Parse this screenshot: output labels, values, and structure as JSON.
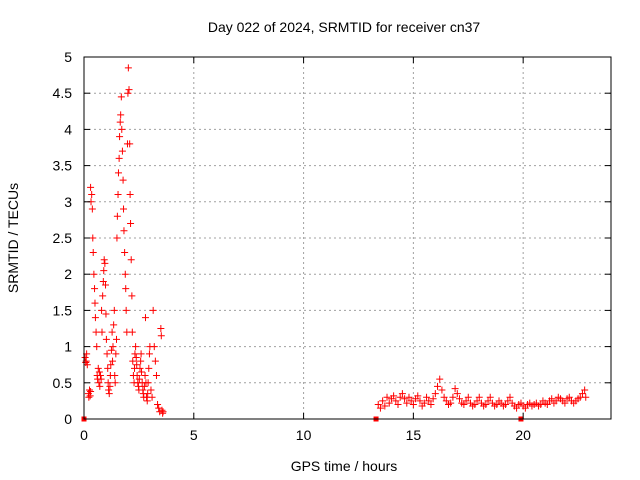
{
  "chart_data": {
    "type": "scatter",
    "title": "Day 022 of 2024, SRMTID for receiver cn37",
    "xlabel": "GPS time / hours",
    "ylabel": "SRMTID / TECUs",
    "xlim": [
      0,
      24
    ],
    "ylim": [
      0,
      5
    ],
    "xticks": [
      "0",
      "5",
      "10",
      "15",
      "20"
    ],
    "yticks": [
      "0",
      "0.5",
      "1",
      "1.5",
      "2",
      "2.5",
      "3",
      "3.5",
      "4",
      "4.5",
      "5"
    ],
    "grid": true,
    "legend": "none",
    "marker": "plus",
    "color": "#ff0000",
    "series": [
      {
        "name": "SRMTID",
        "points": [
          [
            0.05,
            0.85
          ],
          [
            0.08,
            0.78
          ],
          [
            0.1,
            0.8
          ],
          [
            0.12,
            0.9
          ],
          [
            0.15,
            0.75
          ],
          [
            0.2,
            0.35
          ],
          [
            0.22,
            0.3
          ],
          [
            0.25,
            0.4
          ],
          [
            0.28,
            0.32
          ],
          [
            0.3,
            0.38
          ],
          [
            0.3,
            3.2
          ],
          [
            0.32,
            3.0
          ],
          [
            0.35,
            3.1
          ],
          [
            0.38,
            2.9
          ],
          [
            0.4,
            2.5
          ],
          [
            0.42,
            2.3
          ],
          [
            0.45,
            2.0
          ],
          [
            0.48,
            1.8
          ],
          [
            0.5,
            1.6
          ],
          [
            0.52,
            1.4
          ],
          [
            0.55,
            1.2
          ],
          [
            0.58,
            1.0
          ],
          [
            0.6,
            0.6
          ],
          [
            0.62,
            0.55
          ],
          [
            0.65,
            0.7
          ],
          [
            0.68,
            0.5
          ],
          [
            0.7,
            0.65
          ],
          [
            0.72,
            0.45
          ],
          [
            0.75,
            0.6
          ],
          [
            0.78,
            0.55
          ],
          [
            0.8,
            1.5
          ],
          [
            0.82,
            1.2
          ],
          [
            0.85,
            1.7
          ],
          [
            0.88,
            1.9
          ],
          [
            0.9,
            2.05
          ],
          [
            0.92,
            2.2
          ],
          [
            0.95,
            2.15
          ],
          [
            0.98,
            1.85
          ],
          [
            1.0,
            1.45
          ],
          [
            1.02,
            1.1
          ],
          [
            1.05,
            0.9
          ],
          [
            1.08,
            0.7
          ],
          [
            1.1,
            0.5
          ],
          [
            1.12,
            0.4
          ],
          [
            1.15,
            0.35
          ],
          [
            1.18,
            0.45
          ],
          [
            1.2,
            0.6
          ],
          [
            1.22,
            0.75
          ],
          [
            1.25,
            0.95
          ],
          [
            1.28,
            1.2
          ],
          [
            1.3,
            0.8
          ],
          [
            1.32,
            1.0
          ],
          [
            1.35,
            1.3
          ],
          [
            1.38,
            1.5
          ],
          [
            1.4,
            0.6
          ],
          [
            1.42,
            0.5
          ],
          [
            1.45,
            0.9
          ],
          [
            1.48,
            1.1
          ],
          [
            1.5,
            2.5
          ],
          [
            1.52,
            2.8
          ],
          [
            1.55,
            3.1
          ],
          [
            1.57,
            3.4
          ],
          [
            1.6,
            3.6
          ],
          [
            1.62,
            3.9
          ],
          [
            1.65,
            4.1
          ],
          [
            1.67,
            4.2
          ],
          [
            1.7,
            4.45
          ],
          [
            1.72,
            4.0
          ],
          [
            1.75,
            3.7
          ],
          [
            1.78,
            3.3
          ],
          [
            1.8,
            2.9
          ],
          [
            1.82,
            2.6
          ],
          [
            1.85,
            2.3
          ],
          [
            1.88,
            2.0
          ],
          [
            1.9,
            1.8
          ],
          [
            1.92,
            1.5
          ],
          [
            1.95,
            1.2
          ],
          [
            1.98,
            3.8
          ],
          [
            2.0,
            4.5
          ],
          [
            2.02,
            4.85
          ],
          [
            2.05,
            4.55
          ],
          [
            2.08,
            3.8
          ],
          [
            2.1,
            3.1
          ],
          [
            2.12,
            2.7
          ],
          [
            2.15,
            2.2
          ],
          [
            2.18,
            1.7
          ],
          [
            2.2,
            1.2
          ],
          [
            2.22,
            0.8
          ],
          [
            2.25,
            0.6
          ],
          [
            2.28,
            0.5
          ],
          [
            2.3,
            0.7
          ],
          [
            2.32,
            0.9
          ],
          [
            2.35,
            1.0
          ],
          [
            2.38,
            0.85
          ],
          [
            2.4,
            0.75
          ],
          [
            2.42,
            0.6
          ],
          [
            2.45,
            0.5
          ],
          [
            2.48,
            0.45
          ],
          [
            2.5,
            0.4
          ],
          [
            2.52,
            0.55
          ],
          [
            2.55,
            0.7
          ],
          [
            2.58,
            0.8
          ],
          [
            2.6,
            0.9
          ],
          [
            2.62,
            0.65
          ],
          [
            2.65,
            0.5
          ],
          [
            2.68,
            0.4
          ],
          [
            2.7,
            0.35
          ],
          [
            2.72,
            0.3
          ],
          [
            2.75,
            0.45
          ],
          [
            2.78,
            0.6
          ],
          [
            2.8,
            1.4
          ],
          [
            2.82,
            0.5
          ],
          [
            2.85,
            0.3
          ],
          [
            2.88,
            0.25
          ],
          [
            2.9,
            0.35
          ],
          [
            2.92,
            0.5
          ],
          [
            2.95,
            0.7
          ],
          [
            2.98,
            0.9
          ],
          [
            3.0,
            1.0
          ],
          [
            3.05,
            0.4
          ],
          [
            3.1,
            0.3
          ],
          [
            3.15,
            1.5
          ],
          [
            3.2,
            1.0
          ],
          [
            3.25,
            0.8
          ],
          [
            3.3,
            0.6
          ],
          [
            3.35,
            0.2
          ],
          [
            3.4,
            0.15
          ],
          [
            3.45,
            0.1
          ],
          [
            3.5,
            1.25
          ],
          [
            3.52,
            1.15
          ],
          [
            3.55,
            0.12
          ],
          [
            3.58,
            0.08
          ],
          [
            3.6,
            0.1
          ],
          [
            13.4,
            0.2
          ],
          [
            13.5,
            0.15
          ],
          [
            13.6,
            0.25
          ],
          [
            13.7,
            0.18
          ],
          [
            13.8,
            0.3
          ],
          [
            13.9,
            0.22
          ],
          [
            14.0,
            0.28
          ],
          [
            14.1,
            0.32
          ],
          [
            14.2,
            0.25
          ],
          [
            14.3,
            0.2
          ],
          [
            14.4,
            0.3
          ],
          [
            14.5,
            0.35
          ],
          [
            14.6,
            0.28
          ],
          [
            14.7,
            0.22
          ],
          [
            14.8,
            0.3
          ],
          [
            14.9,
            0.25
          ],
          [
            15.0,
            0.2
          ],
          [
            15.1,
            0.28
          ],
          [
            15.2,
            0.32
          ],
          [
            15.3,
            0.25
          ],
          [
            15.4,
            0.18
          ],
          [
            15.5,
            0.22
          ],
          [
            15.6,
            0.3
          ],
          [
            15.7,
            0.25
          ],
          [
            15.8,
            0.2
          ],
          [
            15.9,
            0.28
          ],
          [
            16.0,
            0.35
          ],
          [
            16.1,
            0.45
          ],
          [
            16.2,
            0.55
          ],
          [
            16.3,
            0.4
          ],
          [
            16.4,
            0.3
          ],
          [
            16.5,
            0.25
          ],
          [
            16.6,
            0.2
          ],
          [
            16.7,
            0.22
          ],
          [
            16.8,
            0.3
          ],
          [
            16.9,
            0.42
          ],
          [
            17.0,
            0.35
          ],
          [
            17.1,
            0.28
          ],
          [
            17.2,
            0.22
          ],
          [
            17.3,
            0.2
          ],
          [
            17.4,
            0.25
          ],
          [
            17.5,
            0.3
          ],
          [
            17.6,
            0.22
          ],
          [
            17.7,
            0.18
          ],
          [
            17.8,
            0.2
          ],
          [
            17.9,
            0.25
          ],
          [
            18.0,
            0.3
          ],
          [
            18.1,
            0.22
          ],
          [
            18.2,
            0.18
          ],
          [
            18.3,
            0.2
          ],
          [
            18.4,
            0.25
          ],
          [
            18.5,
            0.3
          ],
          [
            18.6,
            0.22
          ],
          [
            18.7,
            0.18
          ],
          [
            18.8,
            0.2
          ],
          [
            18.9,
            0.25
          ],
          [
            19.0,
            0.22
          ],
          [
            19.1,
            0.18
          ],
          [
            19.2,
            0.2
          ],
          [
            19.3,
            0.25
          ],
          [
            19.4,
            0.3
          ],
          [
            19.5,
            0.22
          ],
          [
            19.6,
            0.18
          ],
          [
            19.7,
            0.15
          ],
          [
            19.8,
            0.2
          ],
          [
            19.9,
            0.22
          ],
          [
            20.0,
            0.18
          ],
          [
            20.1,
            0.15
          ],
          [
            20.2,
            0.2
          ],
          [
            20.3,
            0.22
          ],
          [
            20.4,
            0.18
          ],
          [
            20.5,
            0.2
          ],
          [
            20.6,
            0.22
          ],
          [
            20.7,
            0.18
          ],
          [
            20.8,
            0.2
          ],
          [
            20.9,
            0.25
          ],
          [
            21.0,
            0.22
          ],
          [
            21.1,
            0.2
          ],
          [
            21.2,
            0.25
          ],
          [
            21.3,
            0.28
          ],
          [
            21.4,
            0.22
          ],
          [
            21.5,
            0.25
          ],
          [
            21.6,
            0.3
          ],
          [
            21.7,
            0.28
          ],
          [
            21.8,
            0.25
          ],
          [
            21.9,
            0.22
          ],
          [
            22.0,
            0.28
          ],
          [
            22.1,
            0.3
          ],
          [
            22.2,
            0.25
          ],
          [
            22.3,
            0.22
          ],
          [
            22.4,
            0.25
          ],
          [
            22.5,
            0.28
          ],
          [
            22.6,
            0.3
          ],
          [
            22.7,
            0.35
          ],
          [
            22.8,
            0.4
          ],
          [
            22.85,
            0.3
          ],
          [
            13.3,
            0.0
          ],
          [
            19.9,
            0.0
          ],
          [
            0.0,
            0.0
          ]
        ]
      }
    ]
  }
}
